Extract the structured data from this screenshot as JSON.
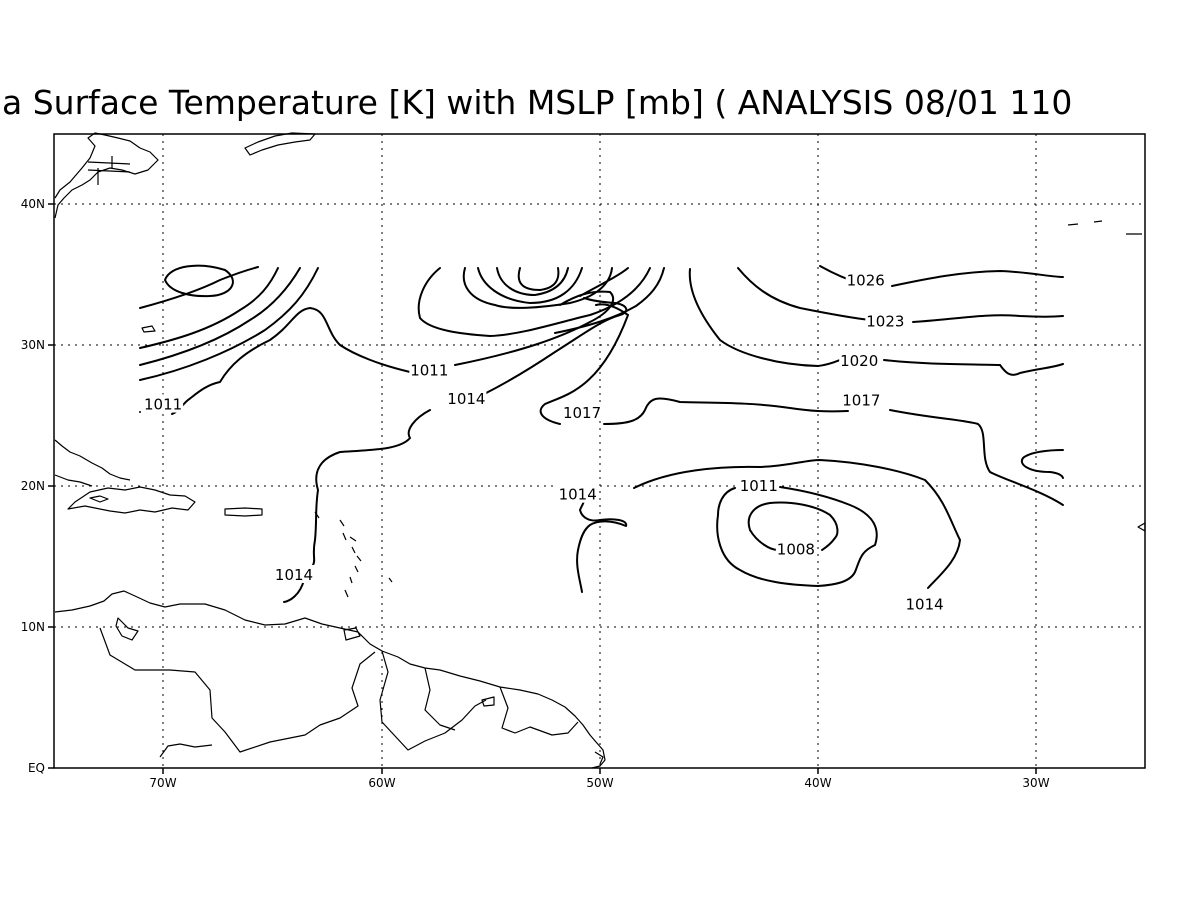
{
  "title": "a Surface Temperature [K] with MSLP [mb] ( ANALYSIS 08/01 110",
  "x_ticks": [
    "70W",
    "60W",
    "50W",
    "40W",
    "30W"
  ],
  "y_ticks": [
    "40N",
    "30N",
    "20N",
    "10N",
    "EQ"
  ],
  "map_extent": {
    "lon_min": -75,
    "lon_max": -25,
    "lat_min": 0,
    "lat_max": 45
  },
  "grid": true,
  "contour_interval_mb": 3,
  "contour_labels": [
    {
      "text": "1026",
      "lon": -37.8,
      "lat": 34.6
    },
    {
      "text": "1023",
      "lon": -36.9,
      "lat": 31.7
    },
    {
      "text": "1020",
      "lon": -38.1,
      "lat": 28.9
    },
    {
      "text": "1017",
      "lon": -38.0,
      "lat": 26.1
    },
    {
      "text": "1017",
      "lon": -50.8,
      "lat": 25.2
    },
    {
      "text": "1014",
      "lon": -56.1,
      "lat": 26.2
    },
    {
      "text": "1011",
      "lon": -57.8,
      "lat": 28.2
    },
    {
      "text": "1011",
      "lon": -70.0,
      "lat": 25.8
    },
    {
      "text": "1014",
      "lon": -51.0,
      "lat": 19.4
    },
    {
      "text": "1011",
      "lon": -42.7,
      "lat": 20.0
    },
    {
      "text": "1008",
      "lon": -41.0,
      "lat": 15.5
    },
    {
      "text": "1014",
      "lon": -35.1,
      "lat": 11.6
    },
    {
      "text": "1014",
      "lon": -64.0,
      "lat": 13.7
    }
  ]
}
